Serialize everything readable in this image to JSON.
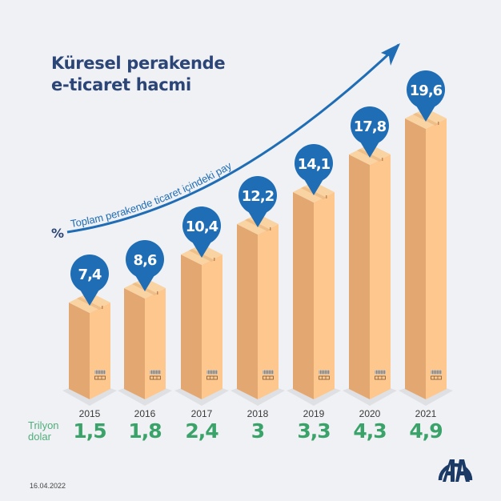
{
  "title": {
    "line1": "Küresel perakende",
    "line2": "e-ticaret hacmi"
  },
  "curve_label": {
    "symbol": "%",
    "text": "Toplam perakende ticaret içindeki pay"
  },
  "unit_label": {
    "line1": "Trilyon",
    "line2": "dolar"
  },
  "date": "16.04.2022",
  "logo": "AA",
  "colors": {
    "background": "#f0f1f4",
    "title": "#2c4577",
    "pin": "#1f6db5",
    "curve": "#1f6db5",
    "value_green": "#3aa36a",
    "box_front": "#e3a872",
    "box_side": "#fdc78e",
    "box_top": "#f9d3a2"
  },
  "bars": [
    {
      "year": "2015",
      "share": "7,4",
      "volume": "1,5"
    },
    {
      "year": "2016",
      "share": "8,6",
      "volume": "1,8"
    },
    {
      "year": "2017",
      "share": "10,4",
      "volume": "2,4"
    },
    {
      "year": "2018",
      "share": "12,2",
      "volume": "3"
    },
    {
      "year": "2019",
      "share": "14,1",
      "volume": "3,3"
    },
    {
      "year": "2020",
      "share": "17,8",
      "volume": "4,3"
    },
    {
      "year": "2021",
      "share": "19,6",
      "volume": "4,9"
    }
  ],
  "chart_data": {
    "type": "bar",
    "title": "Küresel perakende e-ticaret hacmi",
    "categories": [
      "2015",
      "2016",
      "2017",
      "2018",
      "2019",
      "2020",
      "2021"
    ],
    "series": [
      {
        "name": "Toplam perakende ticaret içindeki pay (%)",
        "values": [
          7.4,
          8.6,
          10.4,
          12.2,
          14.1,
          17.8,
          19.6
        ]
      },
      {
        "name": "Trilyon dolar",
        "values": [
          1.5,
          1.8,
          2.4,
          3.0,
          3.3,
          4.3,
          4.9
        ]
      }
    ],
    "xlabel": "",
    "ylabel": "",
    "annotations": [
      "% Toplam perakende ticaret içindeki pay",
      "Trilyon dolar"
    ],
    "grid": false,
    "legend": "none"
  }
}
